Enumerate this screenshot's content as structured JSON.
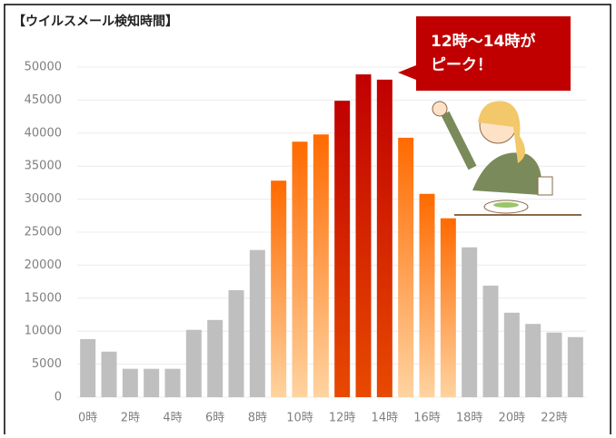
{
  "chart_data": {
    "type": "bar",
    "title": "【ウイルスメール検知時間】",
    "annotation": [
      "12時〜14時が",
      "ピーク！"
    ],
    "categories": [
      "0時",
      null,
      "2時",
      null,
      "4時",
      null,
      "6時",
      null,
      "8時",
      null,
      "10時",
      null,
      "12時",
      null,
      "14時",
      null,
      "16時",
      null,
      "18時",
      null,
      "20時",
      null,
      "22時",
      null
    ],
    "values": [
      8800,
      6900,
      4300,
      4300,
      4300,
      10200,
      11700,
      16200,
      22300,
      32800,
      38700,
      39800,
      44900,
      48900,
      48100,
      39300,
      30800,
      27100,
      22700,
      16900,
      12800,
      11100,
      9800,
      9100
    ],
    "colors": [
      "#bfbfbf",
      "#bfbfbf",
      "#bfbfbf",
      "#bfbfbf",
      "#bfbfbf",
      "#bfbfbf",
      "#bfbfbf",
      "#bfbfbf",
      "#bfbfbf",
      "#ff6a00",
      "#ff6a00",
      "#ff6a00",
      "#c00000",
      "#c00000",
      "#c00000",
      "#ff6a00",
      "#ff6a00",
      "#ff6a00",
      "#bfbfbf",
      "#bfbfbf",
      "#bfbfbf",
      "#bfbfbf",
      "#bfbfbf",
      "#bfbfbf"
    ],
    "ylim": [
      0,
      50000
    ],
    "yticks": [
      0,
      5000,
      10000,
      15000,
      20000,
      25000,
      30000,
      35000,
      40000,
      45000,
      50000
    ],
    "grid": true
  }
}
